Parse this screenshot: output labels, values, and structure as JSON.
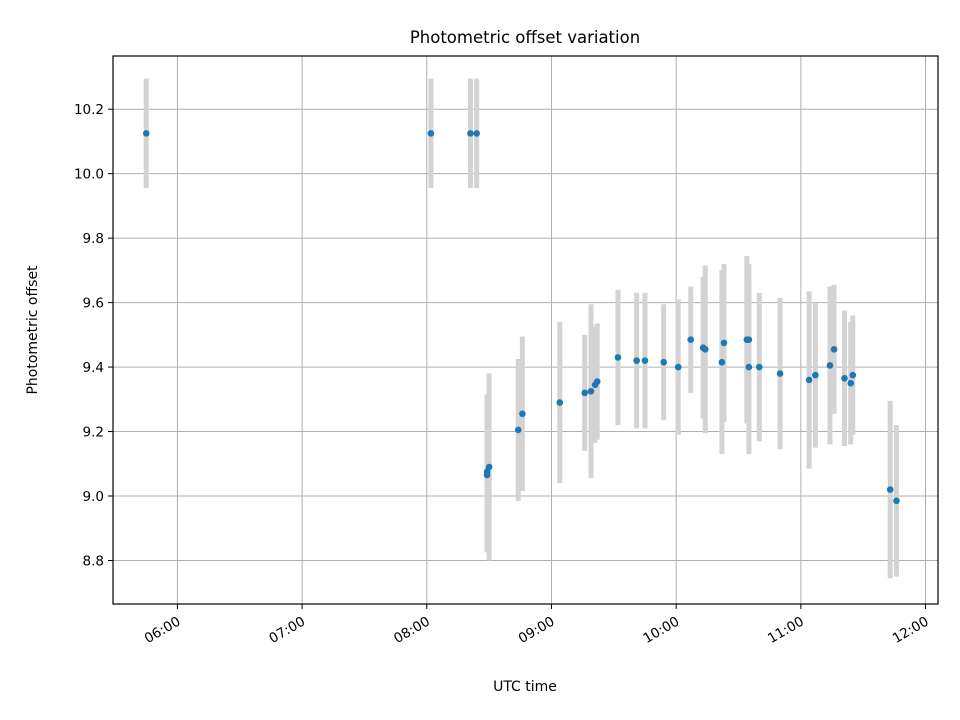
{
  "chart_data": {
    "type": "scatter",
    "title": "Photometric offset variation",
    "xlabel": "UTC time",
    "ylabel": "Photometric offset",
    "x_is_time": true,
    "xlim": [
      "05:29",
      "12:06"
    ],
    "ylim": [
      8.665,
      10.365
    ],
    "x_ticks": [
      "06:00",
      "07:00",
      "08:00",
      "09:00",
      "10:00",
      "11:00",
      "12:00"
    ],
    "y_ticks": [
      8.8,
      9.0,
      9.2,
      9.4,
      9.6,
      9.8,
      10.0,
      10.2
    ],
    "y_tick_labels": [
      "8.8",
      "9.0",
      "9.2",
      "9.4",
      "9.6",
      "9.8",
      "10.0",
      "10.2"
    ],
    "grid": true,
    "point_color": "#1f77b4",
    "errorbar_color": "#d3d3d3",
    "points": [
      {
        "x": "05:45",
        "y": 10.125,
        "err": 0.17
      },
      {
        "x": "08:02",
        "y": 10.125,
        "err": 0.17
      },
      {
        "x": "08:21",
        "y": 10.125,
        "err": 0.17
      },
      {
        "x": "08:24",
        "y": 10.125,
        "err": 0.17
      },
      {
        "x": "08:29",
        "y": 9.065,
        "err": 0.24
      },
      {
        "x": "08:29",
        "y": 9.075,
        "err": 0.24
      },
      {
        "x": "08:30",
        "y": 9.09,
        "err": 0.29
      },
      {
        "x": "08:44",
        "y": 9.205,
        "err": 0.22
      },
      {
        "x": "08:46",
        "y": 9.255,
        "err": 0.24
      },
      {
        "x": "09:04",
        "y": 9.29,
        "err": 0.25
      },
      {
        "x": "09:16",
        "y": 9.32,
        "err": 0.18
      },
      {
        "x": "09:19",
        "y": 9.325,
        "err": 0.27
      },
      {
        "x": "09:21",
        "y": 9.345,
        "err": 0.18
      },
      {
        "x": "09:22",
        "y": 9.355,
        "err": 0.18
      },
      {
        "x": "09:32",
        "y": 9.43,
        "err": 0.21
      },
      {
        "x": "09:41",
        "y": 9.42,
        "err": 0.21
      },
      {
        "x": "09:45",
        "y": 9.42,
        "err": 0.21
      },
      {
        "x": "09:54",
        "y": 9.415,
        "err": 0.18
      },
      {
        "x": "10:01",
        "y": 9.4,
        "err": 0.21
      },
      {
        "x": "10:07",
        "y": 9.485,
        "err": 0.165
      },
      {
        "x": "10:13",
        "y": 9.46,
        "err": 0.22
      },
      {
        "x": "10:14",
        "y": 9.455,
        "err": 0.26
      },
      {
        "x": "10:22",
        "y": 9.415,
        "err": 0.285
      },
      {
        "x": "10:23",
        "y": 9.475,
        "err": 0.245
      },
      {
        "x": "10:34",
        "y": 9.485,
        "err": 0.26
      },
      {
        "x": "10:35",
        "y": 9.485,
        "err": 0.235
      },
      {
        "x": "10:35",
        "y": 9.4,
        "err": 0.27
      },
      {
        "x": "10:40",
        "y": 9.4,
        "err": 0.23
      },
      {
        "x": "10:50",
        "y": 9.38,
        "err": 0.235
      },
      {
        "x": "11:04",
        "y": 9.36,
        "err": 0.275
      },
      {
        "x": "11:07",
        "y": 9.375,
        "err": 0.225
      },
      {
        "x": "11:14",
        "y": 9.405,
        "err": 0.245
      },
      {
        "x": "11:16",
        "y": 9.455,
        "err": 0.2
      },
      {
        "x": "11:21",
        "y": 9.365,
        "err": 0.21
      },
      {
        "x": "11:24",
        "y": 9.35,
        "err": 0.19
      },
      {
        "x": "11:25",
        "y": 9.375,
        "err": 0.185
      },
      {
        "x": "11:43",
        "y": 9.02,
        "err": 0.275
      },
      {
        "x": "11:46",
        "y": 8.985,
        "err": 0.235
      }
    ]
  }
}
